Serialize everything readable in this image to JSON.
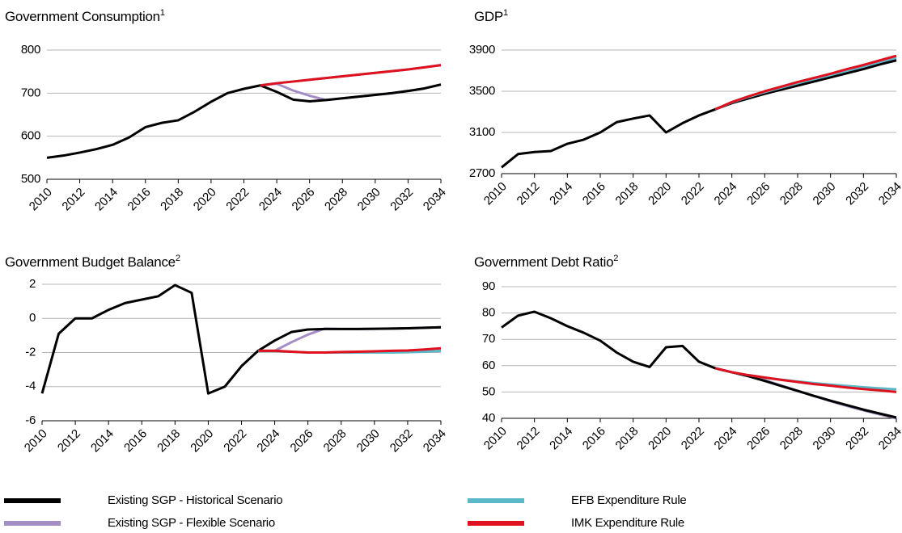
{
  "chart_data": [
    {
      "type": "line",
      "title": "Government Consumption",
      "title_note": "1",
      "x": [
        2010,
        2011,
        2012,
        2013,
        2014,
        2015,
        2016,
        2017,
        2018,
        2019,
        2020,
        2021,
        2022,
        2023,
        2024,
        2025,
        2026,
        2027,
        2028,
        2029,
        2030,
        2031,
        2032,
        2033,
        2034
      ],
      "xticks": [
        2010,
        2012,
        2014,
        2016,
        2018,
        2020,
        2022,
        2024,
        2026,
        2028,
        2030,
        2032,
        2034
      ],
      "ylim": [
        500,
        800
      ],
      "yticks": [
        500,
        600,
        700,
        800
      ],
      "grid": true,
      "series": [
        {
          "name": "Existing SGP - Historical Scenario",
          "color": "#000000",
          "values": [
            550,
            555,
            562,
            570,
            580,
            597,
            621,
            631,
            637,
            657,
            680,
            700,
            710,
            718,
            703,
            685,
            681,
            684,
            688,
            692,
            696,
            700,
            705,
            711,
            720
          ]
        },
        {
          "name": "Existing SGP - Flexible Scenario",
          "color": "#a48dc4",
          "values": [
            null,
            null,
            null,
            null,
            null,
            null,
            null,
            null,
            null,
            null,
            null,
            null,
            null,
            718,
            722,
            706,
            694,
            684,
            688,
            692,
            696,
            700,
            705,
            711,
            720
          ]
        },
        {
          "name": "EFB Expenditure Rule",
          "color": "#5bb8c8",
          "values": [
            null,
            null,
            null,
            null,
            null,
            null,
            null,
            null,
            null,
            null,
            null,
            null,
            null,
            718,
            723,
            727,
            731,
            735,
            739,
            743,
            747,
            751,
            755,
            760,
            765
          ]
        },
        {
          "name": "IMK Expenditure Rule",
          "color": "#e0101e",
          "values": [
            null,
            null,
            null,
            null,
            null,
            null,
            null,
            null,
            null,
            null,
            null,
            null,
            null,
            718,
            723,
            727,
            731,
            735,
            739,
            743,
            747,
            751,
            755,
            760,
            765
          ]
        }
      ]
    },
    {
      "type": "line",
      "title": "GDP",
      "title_note": "1",
      "x": [
        2010,
        2011,
        2012,
        2013,
        2014,
        2015,
        2016,
        2017,
        2018,
        2019,
        2020,
        2021,
        2022,
        2023,
        2024,
        2025,
        2026,
        2027,
        2028,
        2029,
        2030,
        2031,
        2032,
        2033,
        2034
      ],
      "xticks": [
        2010,
        2012,
        2014,
        2016,
        2018,
        2020,
        2022,
        2024,
        2026,
        2028,
        2030,
        2032,
        2034
      ],
      "ylim": [
        2700,
        3900
      ],
      "yticks": [
        2700,
        3100,
        3500,
        3900
      ],
      "grid": true,
      "series": [
        {
          "name": "Existing SGP - Historical Scenario",
          "color": "#000000",
          "values": [
            2760,
            2890,
            2910,
            2920,
            2990,
            3030,
            3100,
            3200,
            3235,
            3265,
            3100,
            3190,
            3265,
            3325,
            3385,
            3430,
            3475,
            3515,
            3555,
            3595,
            3635,
            3675,
            3715,
            3760,
            3800
          ]
        },
        {
          "name": "Existing SGP - Flexible Scenario",
          "color": "#a48dc4",
          "values": [
            null,
            null,
            null,
            null,
            null,
            null,
            null,
            null,
            null,
            null,
            null,
            null,
            null,
            3325,
            3390,
            3440,
            3485,
            3525,
            3565,
            3605,
            3645,
            3685,
            3725,
            3770,
            3810
          ]
        },
        {
          "name": "EFB Expenditure Rule",
          "color": "#5bb8c8",
          "values": [
            null,
            null,
            null,
            null,
            null,
            null,
            null,
            null,
            null,
            null,
            null,
            null,
            null,
            3325,
            3392,
            3445,
            3492,
            3535,
            3578,
            3618,
            3658,
            3700,
            3740,
            3785,
            3828
          ]
        },
        {
          "name": "IMK Expenditure Rule",
          "color": "#e0101e",
          "values": [
            null,
            null,
            null,
            null,
            null,
            null,
            null,
            null,
            null,
            null,
            null,
            null,
            null,
            3325,
            3395,
            3450,
            3500,
            3545,
            3590,
            3630,
            3670,
            3715,
            3755,
            3800,
            3845
          ]
        }
      ]
    },
    {
      "type": "line",
      "title": "Government Budget Balance",
      "title_note": "2",
      "x": [
        2010,
        2011,
        2012,
        2013,
        2014,
        2015,
        2016,
        2017,
        2018,
        2019,
        2020,
        2021,
        2022,
        2023,
        2024,
        2025,
        2026,
        2027,
        2028,
        2029,
        2030,
        2031,
        2032,
        2033,
        2034
      ],
      "xticks": [
        2010,
        2012,
        2014,
        2016,
        2018,
        2020,
        2022,
        2024,
        2026,
        2028,
        2030,
        2032,
        2034
      ],
      "ylim": [
        -6,
        2
      ],
      "yticks": [
        -6,
        -4,
        -2,
        0,
        2
      ],
      "grid": true,
      "series": [
        {
          "name": "Existing SGP - Historical Scenario",
          "color": "#000000",
          "values": [
            -4.4,
            -0.9,
            0,
            0,
            0.5,
            0.9,
            1.1,
            1.3,
            1.95,
            1.5,
            -4.4,
            -4.0,
            -2.8,
            -1.9,
            -1.3,
            -0.8,
            -0.65,
            -0.62,
            -0.62,
            -0.62,
            -0.61,
            -0.6,
            -0.58,
            -0.55,
            -0.52
          ]
        },
        {
          "name": "Existing SGP - Flexible Scenario",
          "color": "#a48dc4",
          "values": [
            null,
            null,
            null,
            null,
            null,
            null,
            null,
            null,
            null,
            null,
            null,
            null,
            null,
            -1.9,
            -1.9,
            -1.4,
            -0.95,
            -0.6,
            -0.62,
            -0.62,
            -0.61,
            -0.6,
            -0.58,
            -0.55,
            -0.52
          ]
        },
        {
          "name": "EFB Expenditure Rule",
          "color": "#5bb8c8",
          "values": [
            null,
            null,
            null,
            null,
            null,
            null,
            null,
            null,
            null,
            null,
            null,
            null,
            null,
            -1.9,
            -1.9,
            -1.95,
            -2.0,
            -2.0,
            -2.0,
            -2.0,
            -2.0,
            -2.0,
            -1.98,
            -1.95,
            -1.9
          ]
        },
        {
          "name": "IMK Expenditure Rule",
          "color": "#e0101e",
          "values": [
            null,
            null,
            null,
            null,
            null,
            null,
            null,
            null,
            null,
            null,
            null,
            null,
            null,
            -1.9,
            -1.9,
            -1.95,
            -2.0,
            -2.0,
            -1.97,
            -1.95,
            -1.93,
            -1.9,
            -1.88,
            -1.82,
            -1.75
          ]
        }
      ]
    },
    {
      "type": "line",
      "title": "Government Debt Ratio",
      "title_note": "2",
      "x": [
        2010,
        2011,
        2012,
        2013,
        2014,
        2015,
        2016,
        2017,
        2018,
        2019,
        2020,
        2021,
        2022,
        2023,
        2024,
        2025,
        2026,
        2027,
        2028,
        2029,
        2030,
        2031,
        2032,
        2033,
        2034
      ],
      "xticks": [
        2010,
        2012,
        2014,
        2016,
        2018,
        2020,
        2022,
        2024,
        2026,
        2028,
        2030,
        2032,
        2034
      ],
      "ylim": [
        40,
        90
      ],
      "yticks": [
        40,
        50,
        60,
        70,
        80,
        90
      ],
      "grid": true,
      "series": [
        {
          "name": "Existing SGP - Historical Scenario",
          "color": "#000000",
          "values": [
            74.5,
            79,
            80.5,
            78,
            75,
            72.5,
            69.5,
            65,
            61.5,
            59.5,
            67,
            67.5,
            61.5,
            59,
            57.5,
            56,
            54.2,
            52.3,
            50.4,
            48.5,
            46.7,
            45,
            43.3,
            41.8,
            40.3
          ]
        },
        {
          "name": "Existing SGP - Flexible Scenario",
          "color": "#a48dc4",
          "values": [
            null,
            null,
            null,
            null,
            null,
            null,
            null,
            null,
            null,
            null,
            null,
            null,
            null,
            59,
            57.5,
            56,
            54.5,
            52.5,
            50.5,
            48.5,
            46.5,
            44.7,
            43,
            41.5,
            40
          ]
        },
        {
          "name": "EFB Expenditure Rule",
          "color": "#5bb8c8",
          "values": [
            null,
            null,
            null,
            null,
            null,
            null,
            null,
            null,
            null,
            null,
            null,
            null,
            null,
            59,
            57.5,
            56.4,
            55.5,
            54.7,
            54,
            53.4,
            52.8,
            52.3,
            51.8,
            51.4,
            51
          ]
        },
        {
          "name": "IMK Expenditure Rule",
          "color": "#e0101e",
          "values": [
            null,
            null,
            null,
            null,
            null,
            null,
            null,
            null,
            null,
            null,
            null,
            null,
            null,
            59,
            57.5,
            56.4,
            55.5,
            54.6,
            53.8,
            53,
            52.4,
            51.7,
            51.1,
            50.6,
            50
          ]
        }
      ]
    }
  ]
}
